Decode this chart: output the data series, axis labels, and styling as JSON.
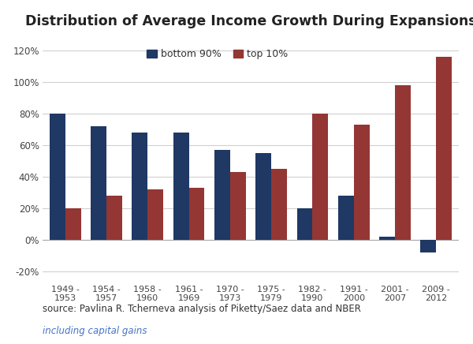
{
  "title": "Distribution of Average Income Growth During Expansions",
  "categories": [
    "1949 -\n1953",
    "1954 -\n1957",
    "1958 -\n1960",
    "1961 -\n1969",
    "1970 -\n1973",
    "1975 -\n1979",
    "1982 -\n1990",
    "1991 -\n2000",
    "2001 -\n2007",
    "2009 -\n2012"
  ],
  "bottom90": [
    0.8,
    0.72,
    0.68,
    0.68,
    0.57,
    0.55,
    0.2,
    0.28,
    0.02,
    -0.08
  ],
  "top10": [
    0.2,
    0.28,
    0.32,
    0.33,
    0.43,
    0.45,
    0.8,
    0.73,
    0.98,
    1.16
  ],
  "color_bottom90": "#1F3864",
  "color_top10": "#943634",
  "ylabel_ticks": [
    "-20%",
    "0%",
    "20%",
    "40%",
    "60%",
    "80%",
    "100%",
    "120%"
  ],
  "yticks": [
    -0.2,
    0.0,
    0.2,
    0.4,
    0.6,
    0.8,
    1.0,
    1.2
  ],
  "ylim": [
    -0.27,
    1.3
  ],
  "legend_labels": [
    "bottom 90%",
    "top 10%"
  ],
  "source_text": "source: Pavlina R. Tcherneva analysis of Piketty/Saez data and NBER",
  "note_text": "including capital gains",
  "background_color": "#ffffff",
  "grid_color": "#d0d0d0"
}
